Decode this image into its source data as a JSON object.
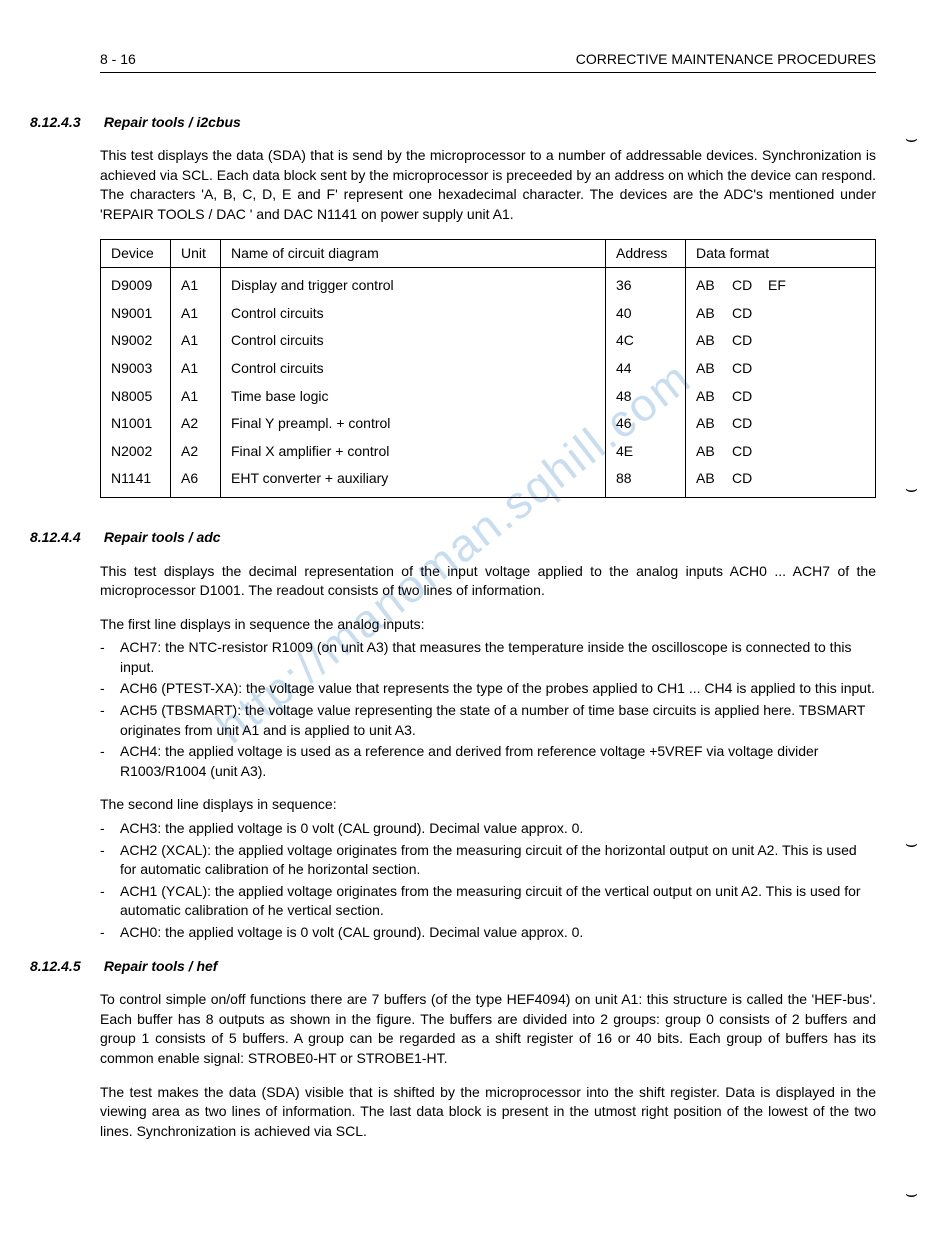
{
  "header": {
    "page_number": "8 - 16",
    "title": "CORRECTIVE MAINTENANCE PROCEDURES"
  },
  "watermark": "http://manoman.sqhill.com",
  "sections": {
    "s1": {
      "number": "8.12.4.3",
      "title": "Repair tools / i2cbus",
      "para1": "This test displays the data (SDA) that is send by the microprocessor to a number of addressable devices. Synchronization is achieved via SCL. Each data block sent by the microprocessor is preceeded by an address on which the device can respond. The characters 'A, B, C, D, E and F' represent one hexadecimal character. The devices are the ADC's mentioned under 'REPAIR TOOLS / DAC ' and DAC N1141 on power supply unit A1."
    },
    "table": {
      "headers": {
        "c1": "Device",
        "c2": "Unit",
        "c3": "Name of circuit diagram",
        "c4": "Address",
        "c5": "Data format"
      },
      "rows": [
        {
          "device": "D9009",
          "unit": "A1",
          "name": "Display and trigger control",
          "addr": "36",
          "df": [
            "AB",
            "CD",
            "EF"
          ]
        },
        {
          "device": "N9001",
          "unit": "A1",
          "name": "Control circuits",
          "addr": "40",
          "df": [
            "AB",
            "CD"
          ]
        },
        {
          "device": "N9002",
          "unit": "A1",
          "name": "Control circuits",
          "addr": "4C",
          "df": [
            "AB",
            "CD"
          ]
        },
        {
          "device": "N9003",
          "unit": "A1",
          "name": "Control circuits",
          "addr": "44",
          "df": [
            "AB",
            "CD"
          ]
        },
        {
          "device": "N8005",
          "unit": "A1",
          "name": "Time base logic",
          "addr": "48",
          "df": [
            "AB",
            "CD"
          ]
        },
        {
          "device": "N1001",
          "unit": "A2",
          "name": "Final Y preampl. + control",
          "addr": "46",
          "df": [
            "AB",
            "CD"
          ]
        },
        {
          "device": "N2002",
          "unit": "A2",
          "name": "Final X amplifier + control",
          "addr": "4E",
          "df": [
            "AB",
            "CD"
          ]
        },
        {
          "device": "N1141",
          "unit": "A6",
          "name": "EHT converter + auxiliary",
          "addr": "88",
          "df": [
            "AB",
            "CD"
          ]
        }
      ]
    },
    "s2": {
      "number": "8.12.4.4",
      "title": "Repair tools / adc",
      "para1": "This test displays the decimal representation of the input voltage applied to the analog inputs ACH0 ... ACH7 of the microprocessor D1001. The readout consists of two lines of information.",
      "para2": "The first line displays in sequence the analog inputs:",
      "list1": [
        "ACH7: the NTC-resistor R1009 (on unit A3) that measures the temperature inside the oscilloscope is connected to this input.",
        "ACH6 (PTEST-XA): the voltage value that represents the type of the probes applied to CH1 ... CH4 is applied to this input.",
        "ACH5 (TBSMART): the voltage value representing the state of a number of time base circuits is applied here. TBSMART originates from unit A1 and is applied to unit A3.",
        "ACH4: the applied voltage is used as a reference and derived from reference voltage +5VREF via voltage divider R1003/R1004 (unit A3)."
      ],
      "para3": "The second line displays in sequence:",
      "list2": [
        "ACH3: the applied voltage is 0 volt (CAL ground). Decimal value approx. 0.",
        "ACH2 (XCAL): the applied voltage originates from the measuring circuit of the horizontal output on unit A2. This is used for automatic calibration of he horizontal section.",
        "ACH1 (YCAL): the applied voltage originates from the measuring circuit of the vertical output on unit A2. This is used for automatic calibration of he vertical section.",
        "ACH0: the applied voltage is 0 volt (CAL ground). Decimal value approx. 0."
      ]
    },
    "s3": {
      "number": "8.12.4.5",
      "title": "Repair tools / hef",
      "para1": "To control simple on/off functions there are 7 buffers (of the type HEF4094) on unit A1: this structure is called the 'HEF-bus'. Each buffer has 8 outputs as shown in the figure. The buffers are divided into 2 groups: group 0 consists of 2 buffers and group 1 consists of 5 buffers. A group can be regarded as a shift register of 16 or 40 bits. Each group of buffers has its common enable signal: STROBE0-HT or STROBE1-HT.",
      "para2": "The test makes the data (SDA) visible that is shifted by the microprocessor into the shift register. Data is displayed in the viewing area as two lines of information. The last data block is present in the utmost right position of the lowest of the two lines. Synchronization is achieved via SCL."
    }
  }
}
